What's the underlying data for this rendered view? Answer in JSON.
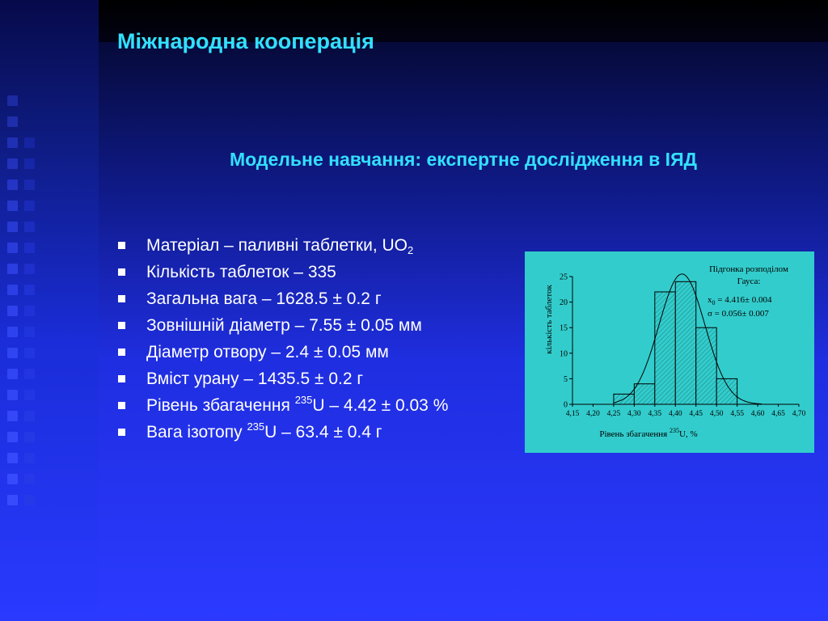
{
  "title": "Міжнародна кооперація",
  "subtitle": "Модельне навчання: експертне дослідження в ІЯД",
  "bullets": [
    {
      "text": "Матеріал – паливні таблетки, UO",
      "sub": "2",
      "after": ""
    },
    {
      "text": "Кількість таблеток – 335"
    },
    {
      "text": "Загальна вага – 1628.5 ± 0.2 г"
    },
    {
      "text": "Зовнішній діаметр – 7.55 ± 0.05 мм"
    },
    {
      "text": "Діаметр отвору – 2.4 ± 0.05 мм"
    },
    {
      "text": "Вміст урану – 1435.5 ± 0.2 г"
    },
    {
      "pre": "Рівень збагачення ",
      "sup": "235",
      "text": "U – 4.42 ± 0.03 %"
    },
    {
      "pre": "Вага ізотопу ",
      "sup": "235",
      "text": "U – 63.4 ± 0.4 г"
    }
  ],
  "colors": {
    "title": "#33e0ff",
    "bullet_text": "#ffffff",
    "chart_bg": "#33cccc",
    "bar_fill": "#33cccc",
    "hatch": "#1a7f7f"
  },
  "chart_data": {
    "type": "bar",
    "bins": [
      {
        "from": 4.15,
        "to": 4.2,
        "value": 0
      },
      {
        "from": 4.2,
        "to": 4.25,
        "value": 0
      },
      {
        "from": 4.25,
        "to": 4.3,
        "value": 2
      },
      {
        "from": 4.3,
        "to": 4.35,
        "value": 4
      },
      {
        "from": 4.35,
        "to": 4.4,
        "value": 22
      },
      {
        "from": 4.4,
        "to": 4.45,
        "value": 24
      },
      {
        "from": 4.45,
        "to": 4.5,
        "value": 15
      },
      {
        "from": 4.5,
        "to": 4.55,
        "value": 5
      },
      {
        "from": 4.55,
        "to": 4.6,
        "value": 0
      },
      {
        "from": 4.6,
        "to": 4.65,
        "value": 0
      },
      {
        "from": 4.65,
        "to": 4.7,
        "value": 0
      }
    ],
    "fit": {
      "type": "gaussian",
      "x0": 4.416,
      "sigma": 0.056,
      "peak": 25.5
    },
    "xlim": [
      4.15,
      4.7
    ],
    "ylim": [
      0,
      25
    ],
    "xticks": [
      "4,15",
      "4,20",
      "4,25",
      "4,30",
      "4,35",
      "4,40",
      "4,45",
      "4,50",
      "4,55",
      "4,60",
      "4,65",
      "4,70"
    ],
    "yticks": [
      0,
      5,
      10,
      15,
      20,
      25
    ],
    "ylabel": "кількість таблеток",
    "xlabel_pre": "Рівень збагачення ",
    "xlabel_sup": "235",
    "xlabel_post": "U, %",
    "annotation": {
      "line1": "Підгонка розподілом",
      "line2": "Гауса:",
      "x0_label": "x",
      "x0_sub": "0",
      "x0_value": " = 4.416± 0.004",
      "sigma_value": "σ = 0.056± 0.007"
    }
  }
}
